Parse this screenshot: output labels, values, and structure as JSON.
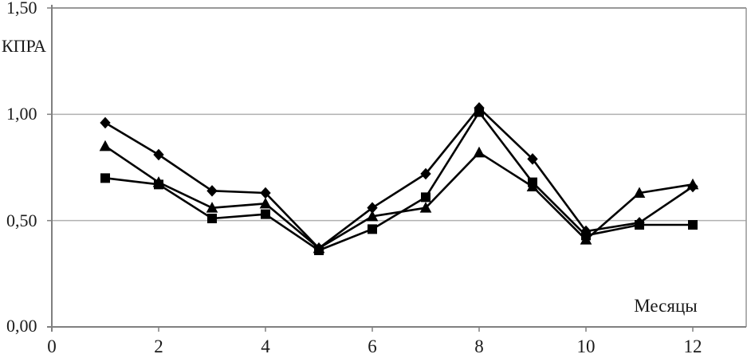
{
  "chart_data": {
    "type": "line",
    "title": "",
    "ylabel": "КПРА",
    "xlabel": "Месяцы",
    "x": [
      1,
      2,
      3,
      4,
      5,
      6,
      7,
      8,
      9,
      10,
      11,
      12
    ],
    "series": [
      {
        "name": "series-diamond",
        "marker": "diamond",
        "values": [
          0.96,
          0.81,
          0.64,
          0.63,
          0.37,
          0.56,
          0.72,
          1.03,
          0.79,
          0.45,
          0.49,
          0.66
        ]
      },
      {
        "name": "series-triangle",
        "marker": "triangle",
        "values": [
          0.85,
          0.68,
          0.56,
          0.58,
          0.37,
          0.52,
          0.56,
          0.82,
          0.66,
          0.41,
          0.63,
          0.67
        ]
      },
      {
        "name": "series-square",
        "marker": "square",
        "values": [
          0.7,
          0.67,
          0.51,
          0.53,
          0.36,
          0.46,
          0.61,
          1.01,
          0.68,
          0.43,
          0.48,
          0.48
        ]
      }
    ],
    "ylim": [
      0,
      1.5
    ],
    "xlim": [
      0,
      13
    ],
    "ytick_labels": [
      "0,00",
      "0,50",
      "1,00",
      "1,50"
    ],
    "ytick_values": [
      0,
      0.5,
      1.0,
      1.5
    ],
    "xtick_labels": [
      "0",
      "2",
      "4",
      "6",
      "8",
      "10",
      "12"
    ],
    "xtick_values": [
      0,
      2,
      4,
      6,
      8,
      10,
      12
    ],
    "grid": "horizontal",
    "legend": "none",
    "colors": {
      "line": "#000000",
      "marker": "#000000",
      "gridline": "#b0b0b0",
      "border": "#999999",
      "axis": "#808080"
    }
  }
}
